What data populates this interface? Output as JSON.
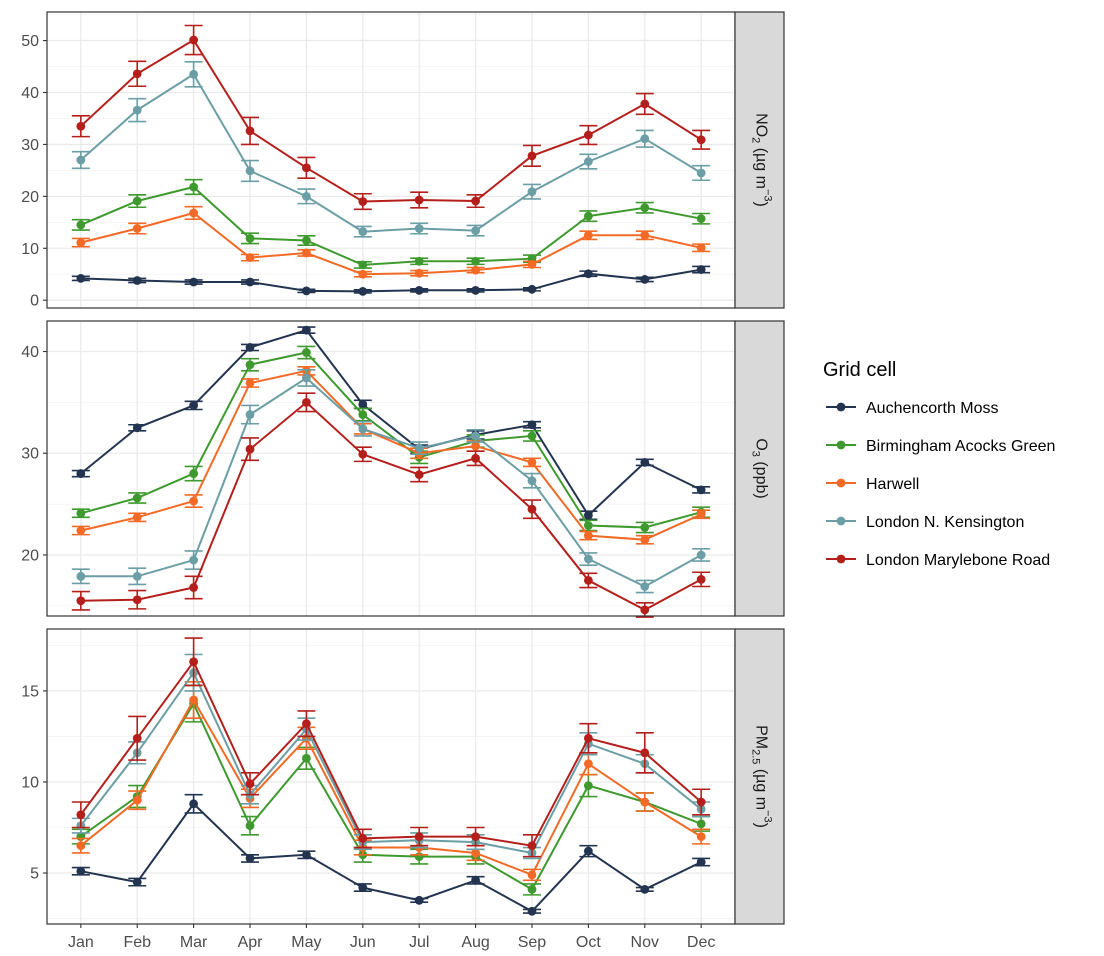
{
  "chart_data": {
    "type": "line",
    "categories": [
      "Jan",
      "Feb",
      "Mar",
      "Apr",
      "May",
      "Jun",
      "Jul",
      "Aug",
      "Sep",
      "Oct",
      "Nov",
      "Dec"
    ],
    "legend": {
      "title": "Grid cell",
      "placement": "right"
    },
    "grid": true,
    "series": [
      {
        "name": "Auchencorth Moss",
        "color": "#233450"
      },
      {
        "name": "Birmingham Acocks Green",
        "color": "#3e9a2e"
      },
      {
        "name": "Harwell",
        "color": "#f26a25"
      },
      {
        "name": "London N. Kensington",
        "color": "#6b9ea5"
      },
      {
        "name": "London Marylebone Road",
        "color": "#b51f1b"
      }
    ],
    "panels": [
      {
        "strip": {
          "base": "NO",
          "sub": "2",
          "units_pre": " (µg m",
          "sup": "−3",
          "units_post": ")"
        },
        "ylim": [
          -1.5,
          55.5
        ],
        "yticks": [
          0,
          10,
          20,
          30,
          40,
          50
        ],
        "values": [
          [
            4.2,
            3.8,
            3.5,
            3.5,
            1.8,
            1.7,
            1.9,
            1.9,
            2.1,
            5.1,
            4.0,
            5.9
          ],
          [
            14.5,
            19.1,
            21.8,
            11.9,
            11.5,
            6.8,
            7.5,
            7.5,
            8.0,
            16.2,
            17.8,
            15.7
          ],
          [
            11.1,
            13.8,
            16.8,
            8.2,
            9.1,
            5.0,
            5.2,
            5.8,
            6.9,
            12.5,
            12.5,
            10.1
          ],
          [
            27.0,
            36.6,
            43.5,
            24.9,
            20.0,
            13.2,
            13.8,
            13.4,
            20.9,
            26.7,
            31.1,
            24.5
          ],
          [
            33.5,
            43.6,
            50.1,
            32.6,
            25.5,
            19.0,
            19.3,
            19.1,
            27.8,
            31.8,
            37.8,
            30.9
          ]
        ],
        "errors": [
          [
            0.4,
            0.4,
            0.4,
            0.4,
            0.3,
            0.3,
            0.3,
            0.3,
            0.3,
            0.5,
            0.4,
            0.6
          ],
          [
            1.0,
            1.2,
            1.4,
            1.0,
            0.9,
            0.6,
            0.6,
            0.6,
            0.7,
            1.0,
            1.0,
            1.0
          ],
          [
            0.8,
            1.0,
            1.2,
            0.6,
            0.6,
            0.5,
            0.5,
            0.5,
            0.6,
            0.8,
            0.8,
            0.7
          ],
          [
            1.6,
            2.2,
            2.4,
            2.0,
            1.4,
            1.0,
            1.0,
            1.0,
            1.4,
            1.4,
            1.6,
            1.4
          ],
          [
            2.0,
            2.4,
            2.8,
            2.6,
            2.0,
            1.5,
            1.5,
            1.2,
            2.0,
            1.8,
            2.0,
            1.8
          ]
        ]
      },
      {
        "strip": {
          "base": "O",
          "sub": "3",
          "units_pre": " (ppb)",
          "sup": "",
          "units_post": ""
        },
        "ylim": [
          14.0,
          43.0
        ],
        "yticks": [
          20,
          30,
          40
        ],
        "values": [
          [
            28.0,
            32.5,
            34.7,
            40.4,
            42.1,
            34.8,
            30.4,
            31.8,
            32.8,
            23.9,
            29.1,
            26.4
          ],
          [
            24.1,
            25.6,
            28.0,
            38.7,
            39.9,
            33.8,
            29.6,
            31.2,
            31.7,
            22.9,
            22.7,
            24.2
          ],
          [
            22.4,
            23.7,
            25.3,
            36.9,
            38.1,
            32.4,
            30.0,
            30.7,
            29.1,
            21.9,
            21.5,
            24.0
          ],
          [
            17.9,
            17.9,
            19.5,
            33.8,
            37.4,
            32.4,
            30.5,
            31.7,
            27.3,
            19.6,
            16.9,
            20.0
          ],
          [
            15.5,
            15.6,
            16.8,
            30.4,
            35.0,
            29.9,
            27.9,
            29.5,
            24.5,
            17.5,
            14.6,
            17.6
          ]
        ],
        "errors": [
          [
            0.3,
            0.3,
            0.4,
            0.3,
            0.3,
            0.4,
            0.4,
            0.4,
            0.3,
            0.4,
            0.3,
            0.3
          ],
          [
            0.4,
            0.5,
            0.7,
            0.6,
            0.6,
            0.6,
            0.6,
            0.6,
            0.5,
            0.5,
            0.5,
            0.5
          ],
          [
            0.4,
            0.4,
            0.6,
            0.4,
            0.4,
            0.5,
            0.5,
            0.5,
            0.4,
            0.4,
            0.4,
            0.4
          ],
          [
            0.7,
            0.8,
            0.9,
            0.9,
            0.8,
            0.7,
            0.6,
            0.6,
            0.7,
            0.6,
            0.6,
            0.6
          ],
          [
            0.9,
            0.9,
            1.1,
            1.1,
            0.9,
            0.7,
            0.7,
            0.7,
            0.9,
            0.7,
            0.7,
            0.7
          ]
        ]
      },
      {
        "strip": {
          "base": "PM",
          "sub": "2.5",
          "units_pre": " (µg m",
          "sup": "−3",
          "units_post": ")"
        },
        "ylim": [
          2.2,
          18.4
        ],
        "yticks": [
          5,
          10,
          15
        ],
        "values": [
          [
            5.1,
            4.5,
            8.8,
            5.8,
            6.0,
            4.2,
            3.5,
            4.6,
            2.9,
            6.2,
            4.1,
            5.6
          ],
          [
            7.0,
            9.2,
            14.3,
            7.6,
            11.3,
            6.0,
            5.9,
            5.9,
            4.1,
            9.8,
            8.9,
            7.7
          ],
          [
            6.5,
            9.0,
            14.5,
            9.1,
            12.4,
            6.4,
            6.4,
            6.1,
            4.9,
            11.0,
            8.9,
            7.0
          ],
          [
            7.6,
            11.6,
            16.0,
            9.3,
            12.9,
            6.7,
            6.8,
            6.7,
            6.1,
            12.1,
            11.0,
            8.5
          ],
          [
            8.2,
            12.4,
            16.6,
            9.9,
            13.2,
            6.9,
            7.0,
            7.0,
            6.5,
            12.4,
            11.6,
            8.9
          ]
        ],
        "errors": [
          [
            0.2,
            0.2,
            0.5,
            0.2,
            0.2,
            0.2,
            0.1,
            0.2,
            0.1,
            0.3,
            0.1,
            0.2
          ],
          [
            0.4,
            0.6,
            1.0,
            0.5,
            0.6,
            0.4,
            0.4,
            0.4,
            0.3,
            0.6,
            0.5,
            0.4
          ],
          [
            0.4,
            0.5,
            1.0,
            0.5,
            0.6,
            0.4,
            0.4,
            0.4,
            0.3,
            0.6,
            0.5,
            0.4
          ],
          [
            0.4,
            0.6,
            1.0,
            0.5,
            0.6,
            0.4,
            0.4,
            0.4,
            0.3,
            0.6,
            0.5,
            0.4
          ],
          [
            0.7,
            1.2,
            1.3,
            0.6,
            0.7,
            0.5,
            0.5,
            0.5,
            0.6,
            0.8,
            1.1,
            0.7
          ]
        ]
      }
    ]
  }
}
